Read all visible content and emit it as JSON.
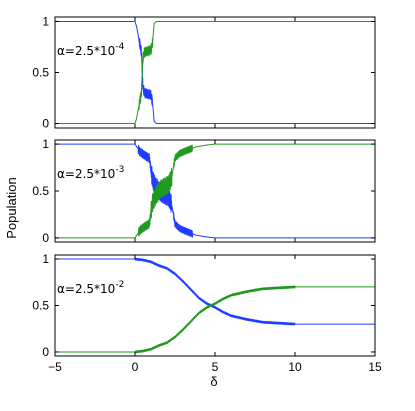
{
  "chart_data": {
    "type": "line",
    "shared_x": {
      "label": "δ",
      "xlim": [
        -5,
        15
      ],
      "ticks": [
        -5,
        0,
        5,
        10,
        15
      ]
    },
    "ylabel": "Population",
    "colors": {
      "blue": "#1f3cff",
      "green": "#1f9a1f"
    },
    "panels": [
      {
        "label_base": "α=2.5*10",
        "label_exp": "-4",
        "ylim": [
          0,
          1
        ],
        "yticks": [
          0,
          0.5,
          1
        ],
        "ytick_labels": [
          "0",
          "0.5",
          "1"
        ],
        "show_x_tick_labels": false,
        "series": [
          {
            "color_key": "blue",
            "points": [
              [
                -5,
                1.0
              ],
              [
                0,
                1.0
              ],
              [
                0.1,
                0.95
              ],
              [
                0.25,
                0.82
              ],
              [
                0.4,
                0.7
              ],
              [
                0.5,
                0.35
              ],
              [
                0.6,
                0.3
              ],
              [
                0.8,
                0.29
              ],
              [
                1.0,
                0.28
              ],
              [
                1.1,
                0.2
              ],
              [
                1.2,
                0.02
              ],
              [
                1.35,
                0.0
              ],
              [
                15,
                0.0
              ]
            ],
            "noise": [
              [
                0.25,
                1.1,
                0.05
              ]
            ]
          },
          {
            "color_key": "green",
            "points": [
              [
                -5,
                0.0
              ],
              [
                0,
                0.0
              ],
              [
                0.1,
                0.05
              ],
              [
                0.25,
                0.18
              ],
              [
                0.4,
                0.3
              ],
              [
                0.5,
                0.65
              ],
              [
                0.6,
                0.7
              ],
              [
                0.8,
                0.71
              ],
              [
                1.0,
                0.72
              ],
              [
                1.1,
                0.8
              ],
              [
                1.2,
                0.98
              ],
              [
                1.35,
                1.0
              ],
              [
                15,
                1.0
              ]
            ],
            "noise": [
              [
                0.25,
                1.1,
                0.05
              ]
            ]
          }
        ]
      },
      {
        "label_base": "α=2.5*10",
        "label_exp": "-3",
        "ylim": [
          0,
          1
        ],
        "yticks": [
          0,
          0.5,
          1
        ],
        "ytick_labels": [
          "0",
          "0.5",
          "1"
        ],
        "show_x_tick_labels": false,
        "series": [
          {
            "color_key": "blue",
            "points": [
              [
                -5,
                1.0
              ],
              [
                0,
                1.0
              ],
              [
                0.3,
                0.92
              ],
              [
                0.6,
                0.88
              ],
              [
                0.9,
                0.85
              ],
              [
                1.0,
                0.72
              ],
              [
                1.1,
                0.62
              ],
              [
                1.3,
                0.55
              ],
              [
                1.6,
                0.48
              ],
              [
                1.9,
                0.45
              ],
              [
                2.1,
                0.43
              ],
              [
                2.3,
                0.35
              ],
              [
                2.5,
                0.15
              ],
              [
                2.8,
                0.1
              ],
              [
                3.2,
                0.07
              ],
              [
                3.8,
                0.03
              ],
              [
                4.5,
                0.01
              ],
              [
                5,
                0.0
              ],
              [
                15,
                0.0
              ]
            ],
            "noise": [
              [
                0.2,
                1.0,
                0.05
              ],
              [
                1.0,
                2.3,
                0.1
              ],
              [
                2.4,
                3.6,
                0.04
              ]
            ]
          },
          {
            "color_key": "green",
            "points": [
              [
                -5,
                0.0
              ],
              [
                0,
                0.0
              ],
              [
                0.3,
                0.08
              ],
              [
                0.6,
                0.12
              ],
              [
                0.9,
                0.15
              ],
              [
                1.0,
                0.28
              ],
              [
                1.1,
                0.38
              ],
              [
                1.3,
                0.45
              ],
              [
                1.6,
                0.52
              ],
              [
                1.9,
                0.55
              ],
              [
                2.1,
                0.57
              ],
              [
                2.3,
                0.65
              ],
              [
                2.5,
                0.85
              ],
              [
                2.8,
                0.9
              ],
              [
                3.2,
                0.93
              ],
              [
                3.8,
                0.97
              ],
              [
                4.5,
                0.99
              ],
              [
                5,
                1.0
              ],
              [
                15,
                1.0
              ]
            ],
            "noise": [
              [
                0.2,
                1.0,
                0.05
              ],
              [
                1.0,
                2.3,
                0.1
              ],
              [
                2.4,
                3.6,
                0.04
              ]
            ]
          }
        ]
      },
      {
        "label_base": "α=2.5*10",
        "label_exp": "-2",
        "ylim": [
          0,
          1
        ],
        "yticks": [
          0,
          0.5,
          1
        ],
        "ytick_labels": [
          "0",
          "0.5",
          "1"
        ],
        "show_x_tick_labels": true,
        "series": [
          {
            "color_key": "blue",
            "points": [
              [
                -5,
                1.0
              ],
              [
                0,
                1.0
              ],
              [
                0.5,
                0.99
              ],
              [
                1,
                0.97
              ],
              [
                1.5,
                0.93
              ],
              [
                2,
                0.9
              ],
              [
                2.5,
                0.84
              ],
              [
                3,
                0.76
              ],
              [
                3.5,
                0.67
              ],
              [
                4,
                0.58
              ],
              [
                4.5,
                0.52
              ],
              [
                5,
                0.48
              ],
              [
                5.5,
                0.43
              ],
              [
                6,
                0.39
              ],
              [
                7,
                0.35
              ],
              [
                8,
                0.32
              ],
              [
                9,
                0.31
              ],
              [
                10,
                0.3
              ],
              [
                12,
                0.3
              ],
              [
                15,
                0.3
              ]
            ],
            "noise": [
              [
                0,
                10,
                0.015
              ]
            ]
          },
          {
            "color_key": "green",
            "points": [
              [
                -5,
                0.0
              ],
              [
                0,
                0.0
              ],
              [
                0.5,
                0.01
              ],
              [
                1,
                0.03
              ],
              [
                1.5,
                0.07
              ],
              [
                2,
                0.1
              ],
              [
                2.5,
                0.16
              ],
              [
                3,
                0.24
              ],
              [
                3.5,
                0.33
              ],
              [
                4,
                0.42
              ],
              [
                4.5,
                0.48
              ],
              [
                5,
                0.52
              ],
              [
                5.5,
                0.57
              ],
              [
                6,
                0.61
              ],
              [
                7,
                0.65
              ],
              [
                8,
                0.68
              ],
              [
                9,
                0.69
              ],
              [
                10,
                0.7
              ],
              [
                12,
                0.7
              ],
              [
                15,
                0.7
              ]
            ],
            "noise": [
              [
                0,
                10,
                0.015
              ]
            ]
          }
        ]
      }
    ]
  }
}
